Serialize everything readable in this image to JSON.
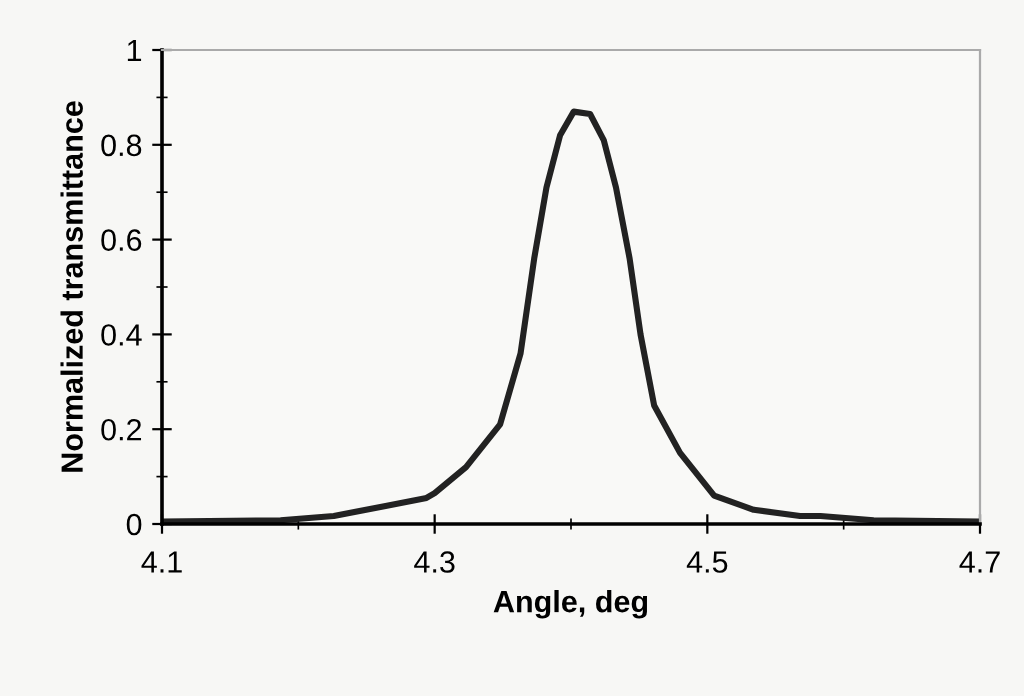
{
  "chart_data": {
    "type": "line",
    "xlabel": "Angle, deg",
    "ylabel": "Normalized transmittance",
    "xlim": [
      4.1,
      4.7
    ],
    "xticks": [
      4.1,
      4.3,
      4.5,
      4.7
    ],
    "ylim": [
      0,
      1
    ],
    "yticks": [
      0,
      0.2,
      0.4,
      0.6,
      0.8,
      1
    ],
    "grid": false,
    "marker": "none",
    "line_style": "solid",
    "series": [
      {
        "color": "#222222",
        "x": [
          4.1,
          4.187,
          4.226,
          4.264,
          4.294,
          4.3,
          4.323,
          4.348,
          4.363,
          4.373,
          4.382,
          4.392,
          4.402,
          4.414,
          4.424,
          4.433,
          4.443,
          4.451,
          4.461,
          4.48,
          4.505,
          4.534,
          4.568,
          4.583,
          4.622,
          4.7
        ],
        "values": [
          0.005,
          0.008,
          0.017,
          0.038,
          0.055,
          0.065,
          0.12,
          0.21,
          0.36,
          0.56,
          0.71,
          0.82,
          0.87,
          0.865,
          0.81,
          0.71,
          0.56,
          0.4,
          0.25,
          0.15,
          0.06,
          0.03,
          0.017,
          0.017,
          0.008,
          0.005
        ]
      }
    ]
  }
}
